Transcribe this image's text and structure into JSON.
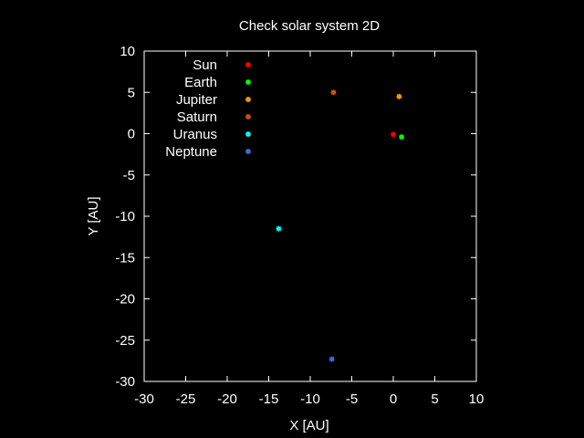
{
  "chart_data": {
    "type": "scatter",
    "title": "Check solar system 2D",
    "xlabel": "X [AU]",
    "ylabel": "Y [AU]",
    "xlim": [
      -30,
      10
    ],
    "ylim": [
      -30,
      10
    ],
    "xticks": [
      -30,
      -25,
      -20,
      -15,
      -10,
      -5,
      0,
      5,
      10
    ],
    "yticks": [
      10,
      5,
      0,
      -5,
      -10,
      -15,
      -20,
      -25,
      -30
    ],
    "grid": false,
    "legend_position": "top-left",
    "series": [
      {
        "name": "Sun",
        "color": "#ff0000",
        "points": [
          [
            0.0,
            -0.1
          ]
        ]
      },
      {
        "name": "Earth",
        "color": "#00ff00",
        "points": [
          [
            1.0,
            -0.4
          ]
        ]
      },
      {
        "name": "Jupiter",
        "color": "#ff9900",
        "points": [
          [
            0.7,
            4.5
          ]
        ]
      },
      {
        "name": "Saturn",
        "color": "#d35400",
        "points": [
          [
            -7.2,
            5.0
          ]
        ]
      },
      {
        "name": "Uranus",
        "color": "#00ffff",
        "points": [
          [
            -13.8,
            -11.5
          ]
        ]
      },
      {
        "name": "Neptune",
        "color": "#4169e1",
        "points": [
          [
            -7.4,
            -27.3
          ]
        ]
      }
    ]
  }
}
